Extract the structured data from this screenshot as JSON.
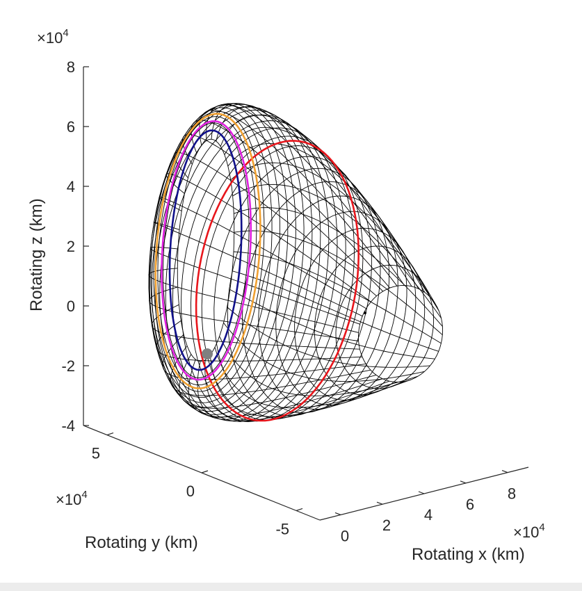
{
  "chart_data": {
    "type": "line3d",
    "xlabel": "Rotating x (km)",
    "ylabel": "Rotating y (km)",
    "zlabel": "Rotating z (km)",
    "x_exponent": "×10",
    "y_exponent": "×10",
    "z_exponent": "×10",
    "exponent_power": "4",
    "xlim": [
      0,
      80000
    ],
    "ylim": [
      -50000,
      50000
    ],
    "zlim": [
      -40000,
      80000
    ],
    "xticks": [
      "0",
      "2",
      "4",
      "6",
      "8"
    ],
    "yticks": [
      "5",
      "0",
      "-5"
    ],
    "zticks": [
      "8",
      "6",
      "4",
      "2",
      "0",
      "-2",
      "-4"
    ],
    "grid": false,
    "surface": {
      "description_color": "#000000",
      "meridians": 36,
      "rings": 26
    },
    "series": [
      {
        "color": "#e8151b",
        "ring_fraction": 0.62
      },
      {
        "color": "#f0a030",
        "ring_fraction": 0.14
      },
      {
        "color": "#e020e0",
        "ring_fraction": 0.09
      },
      {
        "color": "#10108a",
        "ring_fraction": 0.04
      }
    ],
    "markers": [
      {
        "name": "primary-body",
        "color": "#808080",
        "x": 12000,
        "y": 9000,
        "z": -16500
      },
      {
        "name": "small-point",
        "color": "#000000",
        "x": 62000,
        "y": 15000,
        "z": -2000
      }
    ]
  }
}
